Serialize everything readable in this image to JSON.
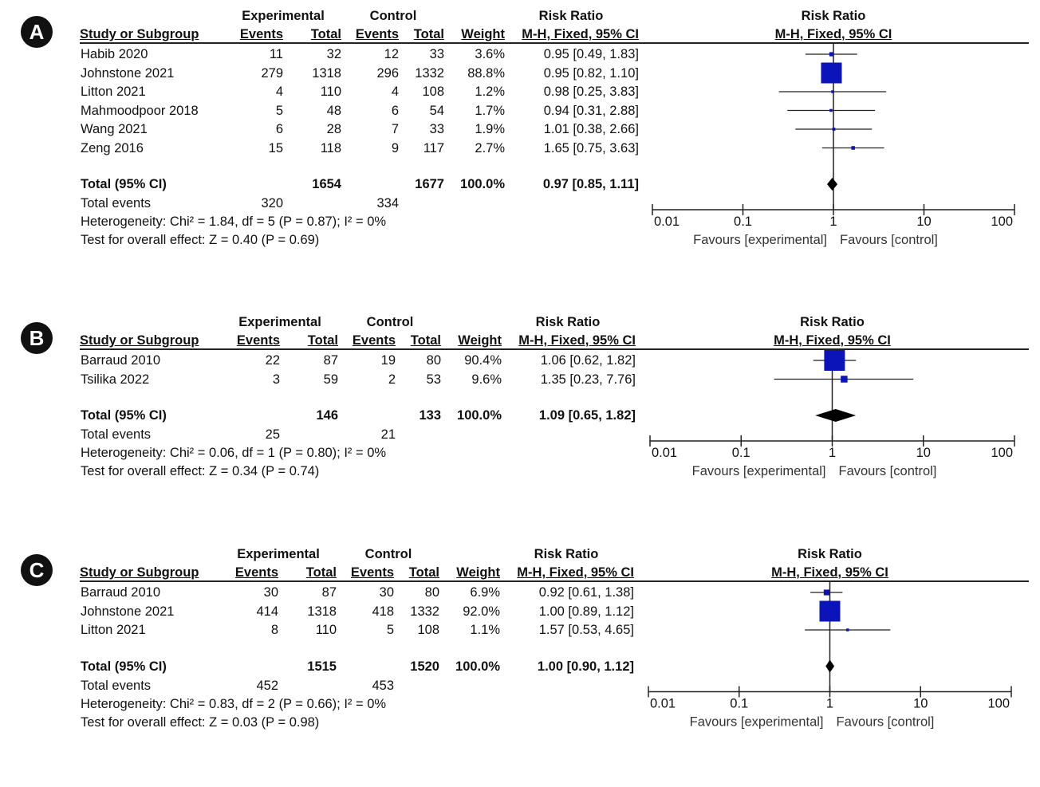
{
  "headers": {
    "experimental": "Experimental",
    "control": "Control",
    "risk_ratio": "Risk Ratio",
    "study": "Study or Subgroup",
    "events": "Events",
    "total": "Total",
    "weight": "Weight",
    "method": "M-H, Fixed, 95% CI",
    "total_events_label": "Total events",
    "total_row_label": "Total (95% CI)",
    "favours_exp": "Favours [experimental]",
    "favours_ctrl": "Favours [control]"
  },
  "colors": {
    "box": "#0a14b8",
    "line": "#222222",
    "diamond": "#000000"
  },
  "chart_data": [
    {
      "type": "forest",
      "panel_label": "A",
      "scale": "log",
      "xlim": [
        0.01,
        100
      ],
      "ticks": [
        "0.01",
        "0.1",
        "1",
        "10",
        "100"
      ],
      "studies": [
        {
          "name": "Habib 2020",
          "exp_events": "11",
          "exp_total": "32",
          "ctl_events": "12",
          "ctl_total": "33",
          "weight": "3.6%",
          "ci_text": "0.95 [0.49, 1.83]",
          "rr": 0.95,
          "lo": 0.49,
          "hi": 1.83,
          "w": 3.6
        },
        {
          "name": "Johnstone 2021",
          "exp_events": "279",
          "exp_total": "1318",
          "ctl_events": "296",
          "ctl_total": "1332",
          "weight": "88.8%",
          "ci_text": "0.95 [0.82, 1.10]",
          "rr": 0.95,
          "lo": 0.82,
          "hi": 1.1,
          "w": 88.8
        },
        {
          "name": "Litton 2021",
          "exp_events": "4",
          "exp_total": "110",
          "ctl_events": "4",
          "ctl_total": "108",
          "weight": "1.2%",
          "ci_text": "0.98 [0.25, 3.83]",
          "rr": 0.98,
          "lo": 0.25,
          "hi": 3.83,
          "w": 1.2
        },
        {
          "name": "Mahmoodpoor 2018",
          "exp_events": "5",
          "exp_total": "48",
          "ctl_events": "6",
          "ctl_total": "54",
          "weight": "1.7%",
          "ci_text": "0.94 [0.31, 2.88]",
          "rr": 0.94,
          "lo": 0.31,
          "hi": 2.88,
          "w": 1.7
        },
        {
          "name": "Wang 2021",
          "exp_events": "6",
          "exp_total": "28",
          "ctl_events": "7",
          "ctl_total": "33",
          "weight": "1.9%",
          "ci_text": "1.01 [0.38, 2.66]",
          "rr": 1.01,
          "lo": 0.38,
          "hi": 2.66,
          "w": 1.9
        },
        {
          "name": "Zeng 2016",
          "exp_events": "15",
          "exp_total": "118",
          "ctl_events": "9",
          "ctl_total": "117",
          "weight": "2.7%",
          "ci_text": "1.65 [0.75, 3.63]",
          "rr": 1.65,
          "lo": 0.75,
          "hi": 3.63,
          "w": 2.7
        }
      ],
      "total": {
        "exp_total": "1654",
        "ctl_total": "1677",
        "weight": "100.0%",
        "ci_text": "0.97 [0.85, 1.11]",
        "rr": 0.97,
        "lo": 0.85,
        "hi": 1.11
      },
      "total_events": {
        "exp": "320",
        "ctl": "334"
      },
      "heterogeneity": "Heterogeneity: Chi² = 1.84, df = 5 (P = 0.87); I² = 0%",
      "overall_effect": "Test for overall effect: Z = 0.40 (P = 0.69)"
    },
    {
      "type": "forest",
      "panel_label": "B",
      "scale": "log",
      "xlim": [
        0.01,
        100
      ],
      "ticks": [
        "0.01",
        "0.1",
        "1",
        "10",
        "100"
      ],
      "studies": [
        {
          "name": "Barraud 2010",
          "exp_events": "22",
          "exp_total": "87",
          "ctl_events": "19",
          "ctl_total": "80",
          "weight": "90.4%",
          "ci_text": "1.06 [0.62, 1.82]",
          "rr": 1.06,
          "lo": 0.62,
          "hi": 1.82,
          "w": 90.4
        },
        {
          "name": "Tsilika 2022",
          "exp_events": "3",
          "exp_total": "59",
          "ctl_events": "2",
          "ctl_total": "53",
          "weight": "9.6%",
          "ci_text": "1.35 [0.23, 7.76]",
          "rr": 1.35,
          "lo": 0.23,
          "hi": 7.76,
          "w": 9.6
        }
      ],
      "total": {
        "exp_total": "146",
        "ctl_total": "133",
        "weight": "100.0%",
        "ci_text": "1.09 [0.65, 1.82]",
        "rr": 1.09,
        "lo": 0.65,
        "hi": 1.82
      },
      "total_events": {
        "exp": "25",
        "ctl": "21"
      },
      "heterogeneity": "Heterogeneity: Chi² = 0.06, df = 1 (P = 0.80); I² = 0%",
      "overall_effect": "Test for overall effect: Z = 0.34 (P = 0.74)"
    },
    {
      "type": "forest",
      "panel_label": "C",
      "scale": "log",
      "xlim": [
        0.01,
        100
      ],
      "ticks": [
        "0.01",
        "0.1",
        "1",
        "10",
        "100"
      ],
      "studies": [
        {
          "name": "Barraud 2010",
          "exp_events": "30",
          "exp_total": "87",
          "ctl_events": "30",
          "ctl_total": "80",
          "weight": "6.9%",
          "ci_text": "0.92 [0.61, 1.38]",
          "rr": 0.92,
          "lo": 0.61,
          "hi": 1.38,
          "w": 6.9
        },
        {
          "name": "Johnstone 2021",
          "exp_events": "414",
          "exp_total": "1318",
          "ctl_events": "418",
          "ctl_total": "1332",
          "weight": "92.0%",
          "ci_text": "1.00 [0.89, 1.12]",
          "rr": 1.0,
          "lo": 0.89,
          "hi": 1.12,
          "w": 92.0
        },
        {
          "name": "Litton 2021",
          "exp_events": "8",
          "exp_total": "110",
          "ctl_events": "5",
          "ctl_total": "108",
          "weight": "1.1%",
          "ci_text": "1.57 [0.53, 4.65]",
          "rr": 1.57,
          "lo": 0.53,
          "hi": 4.65,
          "w": 1.1
        }
      ],
      "total": {
        "exp_total": "1515",
        "ctl_total": "1520",
        "weight": "100.0%",
        "ci_text": "1.00 [0.90, 1.12]",
        "rr": 1.0,
        "lo": 0.9,
        "hi": 1.12
      },
      "total_events": {
        "exp": "452",
        "ctl": "453"
      },
      "heterogeneity": "Heterogeneity: Chi² = 0.83, df = 2 (P = 0.66); I² = 0%",
      "overall_effect": "Test for overall effect: Z = 0.03 (P = 0.98)"
    }
  ]
}
